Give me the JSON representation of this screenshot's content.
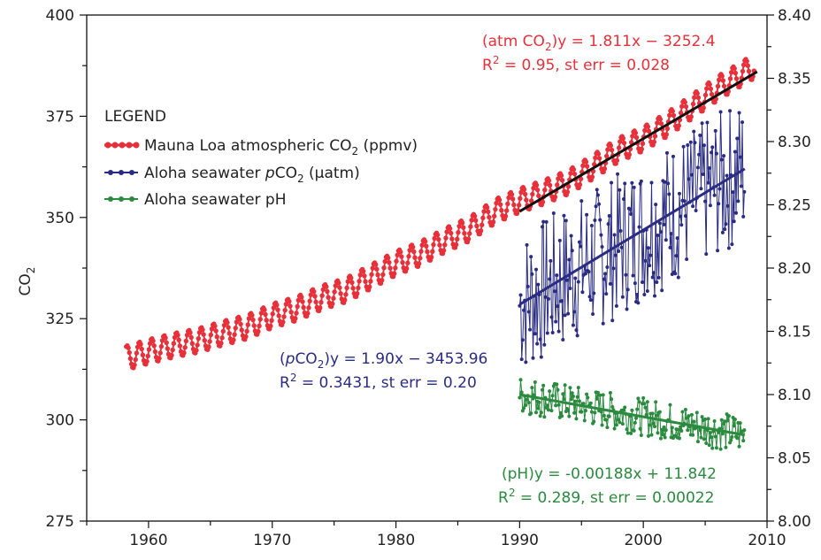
{
  "chart_data": {
    "type": "line",
    "x_axis": {
      "range": [
        1955,
        2010
      ],
      "ticks": [
        1960,
        1970,
        1980,
        1990,
        2000,
        2010
      ]
    },
    "y_axis_left": {
      "label": "CO2",
      "range": [
        275,
        400
      ],
      "ticks": [
        275,
        300,
        325,
        350,
        375,
        400
      ]
    },
    "y_axis_right": {
      "range": [
        8.0,
        8.4
      ],
      "ticks": [
        "8.00",
        "8.05",
        "8.10",
        "8.15",
        "8.20",
        "8.25",
        "8.30",
        "8.35",
        "8.40"
      ]
    },
    "legend": {
      "title": "LEGEND",
      "placement": "upper-left",
      "entries": [
        {
          "label_main": "Mauna Loa atmospheric CO",
          "label_sub": "2",
          "label_end": " (ppmv)",
          "color": "#e8303a"
        },
        {
          "label_main": "Aloha seawater ",
          "label_italic": "p",
          "label_mid": "CO",
          "label_sub": "2",
          "label_end": " (µatm)",
          "color": "#2a2c84"
        },
        {
          "label_main": "Aloha seawater pH",
          "color": "#2a8a3e"
        }
      ]
    },
    "series": [
      {
        "name": "Mauna Loa atmospheric CO2 (ppmv)",
        "axis": "left",
        "color": "#e8303a",
        "x": [
          1958.2,
          1960,
          1962,
          1964,
          1966,
          1968,
          1970,
          1972,
          1974,
          1976,
          1978,
          1980,
          1982,
          1984,
          1986,
          1988,
          1990,
          1992,
          1994,
          1996,
          1998,
          2000,
          2002,
          2004,
          2006,
          2008,
          2009
        ],
        "y": [
          315.3,
          316.9,
          318.4,
          319.6,
          321.4,
          323.0,
          325.7,
          327.5,
          330.2,
          332.1,
          335.4,
          338.7,
          341.1,
          344.4,
          347.2,
          351.5,
          354.2,
          356.3,
          358.8,
          362.6,
          366.7,
          369.4,
          373.1,
          377.5,
          381.9,
          385.6,
          387.4
        ],
        "seasonal_amplitude": 3.0
      },
      {
        "name": "Aloha seawater pCO2 (µatm)",
        "axis": "left",
        "color": "#2a2c84",
        "x_range": [
          1990,
          2008.2
        ],
        "trend": [
          [
            1990,
            328.5
          ],
          [
            2008.2,
            362
          ]
        ],
        "fluctuation": 18
      },
      {
        "name": "Aloha seawater pH",
        "axis": "right",
        "color": "#2a8a3e",
        "x_range": [
          1990,
          2008.2
        ],
        "trend": [
          [
            1990,
            8.1
          ],
          [
            2008.2,
            8.068
          ]
        ],
        "fluctuation": 0.015
      }
    ],
    "fit_lines": [
      {
        "name": "atm CO2 fit",
        "color": "#111111",
        "axis": "left",
        "points": [
          [
            1990,
            351.5
          ],
          [
            2009.2,
            386
          ]
        ]
      },
      {
        "name": "pCO2 fit",
        "color": "#2a2c84",
        "axis": "left",
        "points": [
          [
            1990,
            328.5
          ],
          [
            2008.2,
            362
          ]
        ]
      },
      {
        "name": "pH fit",
        "color": "#2a8a3e",
        "axis": "right",
        "points": [
          [
            1990,
            8.1
          ],
          [
            2008.2,
            8.068
          ]
        ]
      }
    ],
    "annotations": {
      "atm_line1": "(atm CO2)y = 1.811x − 3252.4",
      "atm_line2": "R2 = 0.95, st err = 0.028",
      "pco2_line1": "(pCO2)y = 1.90x − 3453.96",
      "pco2_line2": "R2 = 0.3431, st err = 0.20",
      "ph_line1": "(pH)y = -0.00188x + 11.842",
      "ph_line2": "R2 = 0.289, st err = 0.00022"
    }
  }
}
